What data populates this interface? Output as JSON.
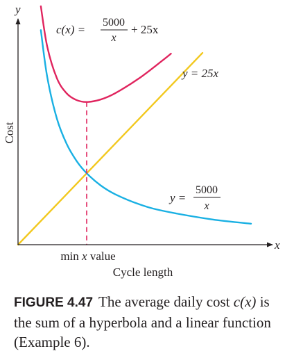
{
  "chart_data": {
    "type": "line",
    "title": "",
    "xlabel": "Cycle length",
    "ylabel": "Cost",
    "x_axis_letter": "x",
    "y_axis_letter": "y",
    "min_marker_label_prefix": "min ",
    "min_marker_label_var": "x",
    "min_marker_label_suffix": " value",
    "x_min_marker": 14.14,
    "grid": false,
    "legend": "none",
    "xlim": [
      0,
      50
    ],
    "ylim": [
      0,
      1150
    ],
    "series": [
      {
        "name": "y = 25x",
        "color": "#f2c81e",
        "x": [
          0,
          10,
          20,
          30,
          38
        ],
        "y": [
          0,
          250,
          500,
          750,
          950
        ]
      },
      {
        "name": "y = 5000/x",
        "color": "#19b0e3",
        "x": [
          4.7,
          6,
          8,
          10,
          12,
          14.14,
          17,
          20,
          25,
          30,
          40,
          48
        ],
        "y": [
          1063,
          833,
          625,
          500,
          417,
          354,
          294,
          250,
          200,
          167,
          125,
          104
        ]
      },
      {
        "name": "c(x) = 5000/x + 25x",
        "color": "#e0245e",
        "x": [
          4.7,
          6,
          8,
          10,
          12,
          14.14,
          17,
          20,
          25,
          30,
          31.5
        ],
        "y": [
          1181,
          983,
          825,
          750,
          717,
          707,
          719,
          750,
          825,
          917,
          946
        ]
      }
    ]
  },
  "annotations": {
    "c_lhs": "c(x) =",
    "c_num": "5000",
    "c_den": "x",
    "c_rest": "+ 25x",
    "line_label": "y = 25x",
    "hyp_lhs": "y =",
    "hyp_num": "5000",
    "hyp_den": "x"
  },
  "caption": {
    "label": "FIGURE 4.47",
    "text_1": "The average daily cost",
    "text_math": "c(x)",
    "text_2": "is the sum of a hyperbola and a linear function (Example 6)."
  },
  "colors": {
    "axis": "#231f20",
    "hyperbola": "#19b0e3",
    "cost": "#e0245e",
    "line": "#f2c81e",
    "marker": "#e0245e"
  }
}
